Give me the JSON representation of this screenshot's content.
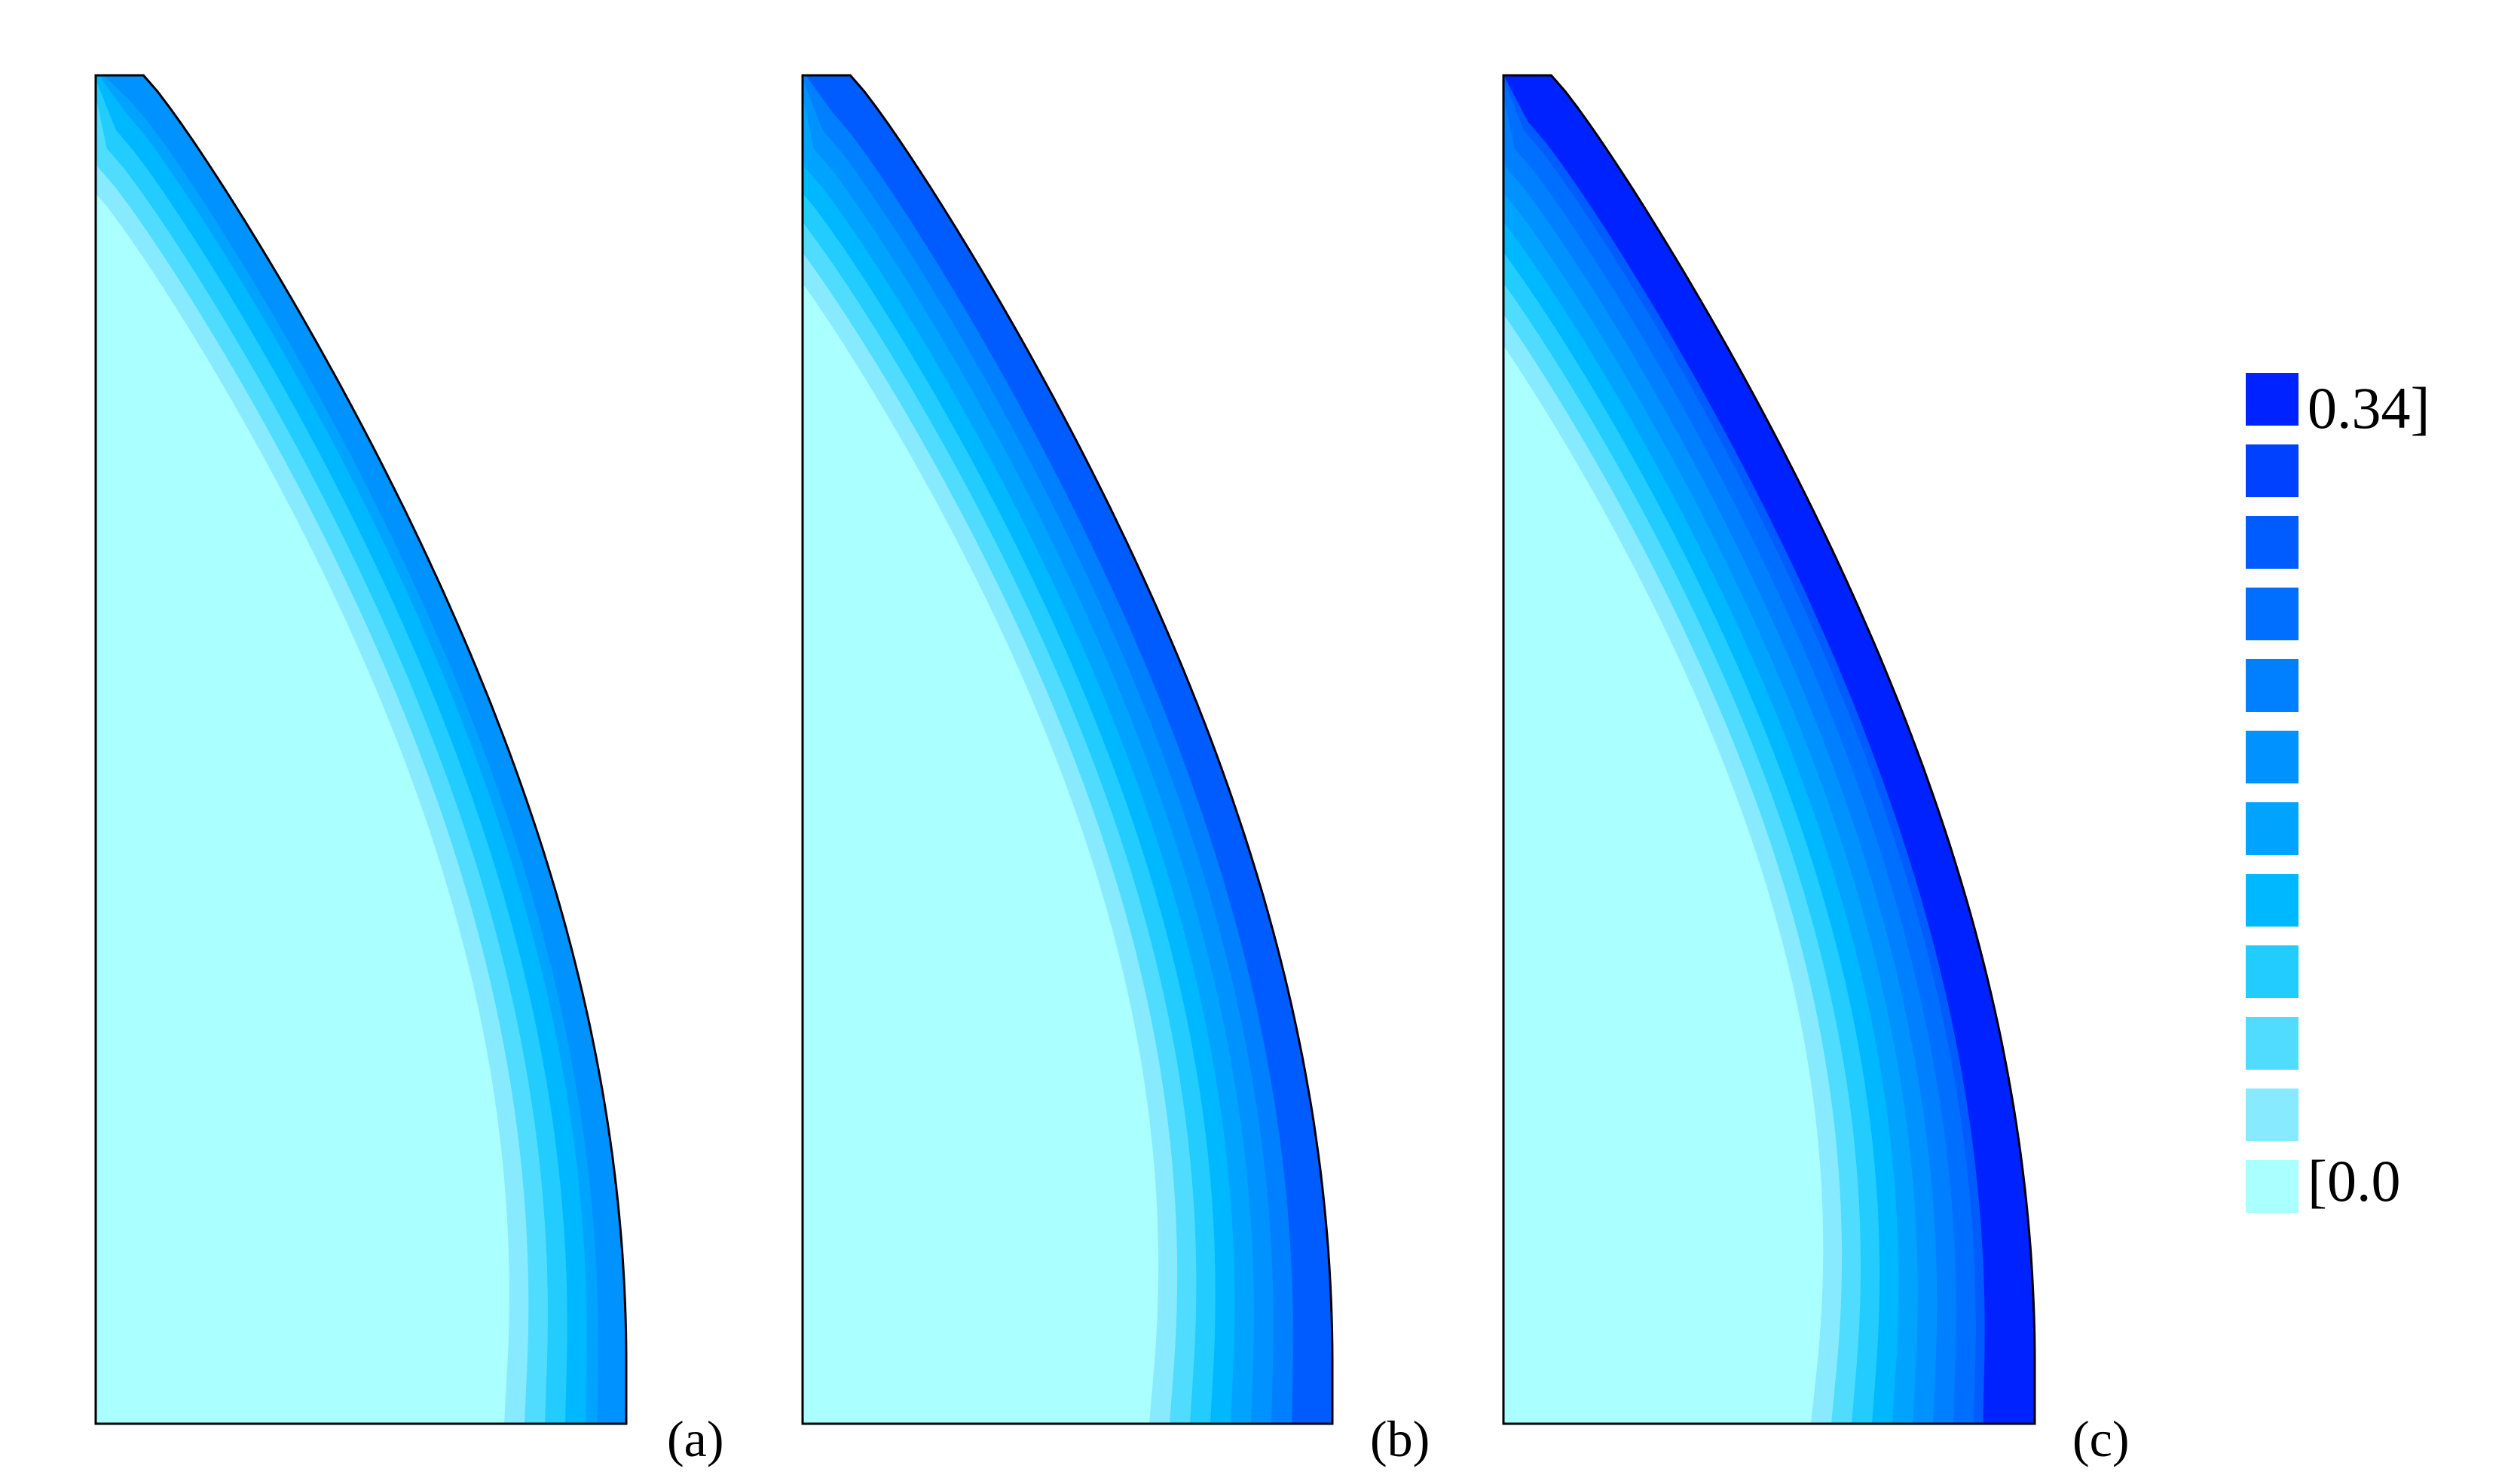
{
  "figure": {
    "panels": [
      {
        "id": "a",
        "label": "(a)",
        "level_scale": 0.55
      },
      {
        "id": "b",
        "label": "(b)",
        "level_scale": 0.8
      },
      {
        "id": "c",
        "label": "(c)",
        "level_scale": 1.0
      }
    ],
    "legend": {
      "max_label": "0.34]",
      "min_label": "[0.0",
      "colors": [
        "#0022ff",
        "#0040ff",
        "#005cff",
        "#006eff",
        "#0080ff",
        "#0092ff",
        "#00a4ff",
        "#00b8ff",
        "#22ccff",
        "#50dcff",
        "#88eaff",
        "#aaffff"
      ]
    },
    "outline_color": "#000000"
  }
}
